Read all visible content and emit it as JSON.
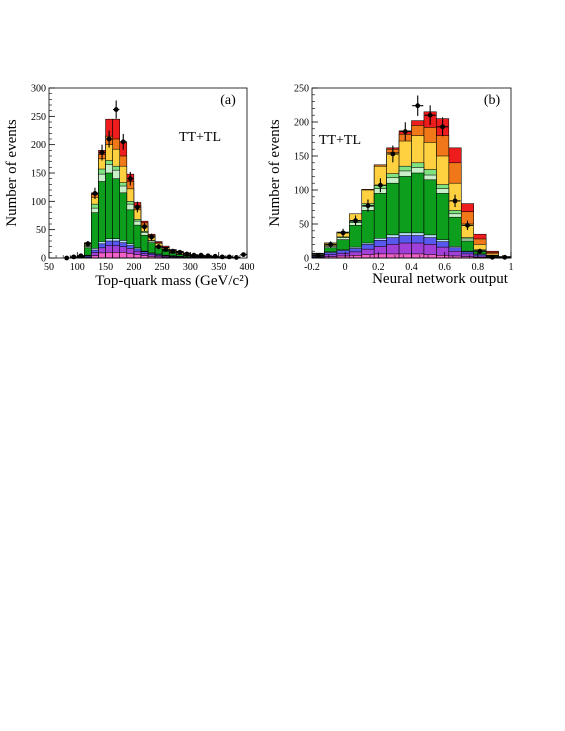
{
  "colors": {
    "signal_top": "#ee1c1c",
    "top_band": "#f07818",
    "wjets": "#ffd040",
    "light_green": "#7ee27e",
    "pale_green": "#c8f0c8",
    "green": "#0e9e1e",
    "light_blue": "#b8e0f8",
    "blue": "#5858ee",
    "purple": "#a040d8",
    "magenta": "#f060c8",
    "data_marker": "#000000"
  },
  "chart_data": [
    {
      "type": "histogram",
      "panel_label": "(a)",
      "annotation": "TT+TL",
      "xlabel": "Top-quark mass (GeV/c²)",
      "ylabel": "Number of events",
      "xlim": [
        50,
        400
      ],
      "ylim": [
        0,
        300
      ],
      "x_ticks": [
        "50",
        "100",
        "150",
        "200",
        "250",
        "300",
        "350",
        "400"
      ],
      "y_ticks": [
        "0",
        "50",
        "100",
        "150",
        "200",
        "250",
        "300"
      ],
      "bin_edges": [
        50,
        62.5,
        75,
        87.5,
        100,
        112.5,
        125,
        137.5,
        150,
        162.5,
        175,
        187.5,
        200,
        212.5,
        225,
        237.5,
        250,
        262.5,
        275,
        287.5,
        300,
        312.5,
        325,
        337.5,
        350,
        362.5,
        375,
        387.5,
        400
      ],
      "stack_order": [
        "magenta",
        "purple",
        "blue",
        "light_blue",
        "green",
        "pale_green",
        "light_green",
        "wjets",
        "top_band",
        "signal_top"
      ],
      "stack_totals": {
        "magenta": [
          0,
          0,
          0,
          0,
          0,
          1,
          4,
          9,
          10,
          10,
          10,
          8,
          6,
          4,
          3,
          2,
          1,
          1,
          1,
          1,
          0,
          0,
          0,
          0,
          0,
          0,
          0,
          0
        ],
        "purple": [
          0,
          0,
          0,
          0,
          0,
          2,
          10,
          18,
          22,
          22,
          20,
          17,
          12,
          8,
          6,
          4,
          3,
          2,
          2,
          1,
          1,
          1,
          1,
          0,
          0,
          0,
          0,
          0
        ],
        "blue": [
          0,
          0,
          0,
          0,
          1,
          4,
          14,
          25,
          30,
          30,
          27,
          22,
          16,
          11,
          8,
          6,
          4,
          3,
          3,
          2,
          2,
          1,
          1,
          1,
          0,
          0,
          0,
          0
        ],
        "light_blue": [
          0,
          0,
          0,
          0,
          1,
          5,
          17,
          29,
          34,
          34,
          31,
          25,
          18,
          12,
          9,
          7,
          5,
          4,
          3,
          2,
          2,
          2,
          1,
          1,
          0,
          0,
          0,
          0
        ],
        "green": [
          0,
          0,
          0,
          0,
          2,
          18,
          80,
          135,
          150,
          140,
          115,
          85,
          58,
          40,
          27,
          18,
          12,
          8,
          6,
          4,
          3,
          2,
          1,
          1,
          1,
          1,
          0,
          0
        ],
        "pale_green": [
          0,
          0,
          0,
          0,
          2,
          20,
          88,
          148,
          165,
          155,
          127,
          95,
          65,
          45,
          30,
          20,
          13,
          9,
          7,
          5,
          3,
          2,
          2,
          1,
          1,
          1,
          1,
          0
        ],
        "light_green": [
          0,
          0,
          0,
          0,
          2,
          22,
          95,
          157,
          172,
          162,
          133,
          100,
          68,
          47,
          31,
          21,
          14,
          10,
          7,
          5,
          4,
          3,
          2,
          1,
          1,
          1,
          1,
          0
        ],
        "wjets": [
          0,
          0,
          0,
          1,
          3,
          25,
          107,
          175,
          200,
          192,
          162,
          122,
          85,
          58,
          38,
          26,
          18,
          13,
          10,
          7,
          5,
          4,
          3,
          2,
          2,
          1,
          1,
          0
        ],
        "top_band": [
          0,
          0,
          0,
          1,
          4,
          26,
          112,
          183,
          215,
          210,
          180,
          135,
          92,
          62,
          40,
          27,
          19,
          14,
          11,
          8,
          6,
          4,
          3,
          2,
          2,
          2,
          1,
          0
        ],
        "signal_top": [
          0,
          0,
          0,
          1,
          4,
          27,
          115,
          190,
          245,
          245,
          205,
          148,
          98,
          65,
          42,
          29,
          21,
          15,
          12,
          9,
          6,
          4,
          3,
          2,
          2,
          2,
          1,
          0
        ]
      },
      "data_points": {
        "x": [
          81.25,
          93.75,
          106.25,
          118.75,
          131.25,
          143.75,
          156.25,
          168.75,
          181.25,
          193.75,
          206.25,
          218.75,
          231.25,
          243.75,
          256.25,
          268.75,
          281.25,
          293.75,
          306.25,
          318.75,
          331.25,
          343.75,
          356.25,
          368.75,
          381.25,
          393.75
        ],
        "y": [
          0,
          2,
          4,
          25,
          114,
          186,
          210,
          262,
          205,
          140,
          90,
          55,
          37,
          20,
          15,
          12,
          10,
          7,
          5,
          5,
          4,
          3,
          2,
          2,
          1,
          6
        ],
        "err": [
          0,
          1.5,
          2,
          5,
          10,
          14,
          15,
          16,
          14,
          12,
          9.5,
          7.5,
          6,
          4.5,
          4,
          3.5,
          3,
          2.6,
          2.2,
          2.2,
          2,
          1.7,
          1.4,
          1.4,
          1,
          2.4
        ]
      }
    },
    {
      "type": "histogram",
      "panel_label": "(b)",
      "annotation": "TT+TL",
      "xlabel": "Neural network output",
      "ylabel": "Number of events",
      "xlim": [
        -0.2,
        1
      ],
      "ylim": [
        0,
        250
      ],
      "x_ticks": [
        "-0.2",
        "0",
        "0.2",
        "0.4",
        "0.6",
        "0.8",
        "1"
      ],
      "y_ticks": [
        "0",
        "50",
        "100",
        "150",
        "200",
        "250"
      ],
      "bin_edges": [
        -0.2,
        -0.125,
        -0.05,
        0.025,
        0.1,
        0.175,
        0.25,
        0.325,
        0.4,
        0.475,
        0.55,
        0.625,
        0.7,
        0.775,
        0.85,
        0.925,
        1.0
      ],
      "stack_order": [
        "magenta",
        "purple",
        "blue",
        "light_blue",
        "green",
        "pale_green",
        "light_green",
        "wjets",
        "top_band",
        "signal_top"
      ],
      "stack_totals": {
        "magenta": [
          1,
          2,
          3,
          4,
          5,
          6,
          6,
          6,
          6,
          5,
          4,
          3,
          2,
          1,
          1,
          0
        ],
        "purple": [
          2,
          5,
          7,
          9,
          13,
          17,
          20,
          22,
          22,
          20,
          16,
          10,
          6,
          3,
          1,
          1
        ],
        "blue": [
          3,
          8,
          11,
          14,
          20,
          26,
          30,
          33,
          33,
          30,
          24,
          15,
          9,
          5,
          2,
          1
        ],
        "light_blue": [
          4,
          9,
          12,
          16,
          22,
          29,
          34,
          37,
          37,
          34,
          27,
          17,
          10,
          6,
          2,
          1
        ],
        "green": [
          5,
          15,
          27,
          48,
          70,
          95,
          110,
          120,
          125,
          115,
          95,
          60,
          25,
          10,
          3,
          1
        ],
        "pale_green": [
          6,
          17,
          30,
          52,
          76,
          102,
          118,
          128,
          133,
          122,
          102,
          65,
          28,
          11,
          3,
          1
        ],
        "light_green": [
          6,
          18,
          31,
          54,
          80,
          107,
          124,
          135,
          140,
          130,
          108,
          70,
          30,
          12,
          4,
          1
        ],
        "wjets": [
          7,
          22,
          38,
          65,
          100,
          135,
          155,
          172,
          180,
          170,
          150,
          110,
          50,
          20,
          6,
          2
        ],
        "top_band": [
          7,
          22,
          38,
          65,
          101,
          137,
          160,
          182,
          195,
          192,
          180,
          140,
          68,
          28,
          8,
          2
        ],
        "signal_top": [
          7,
          22,
          38,
          65,
          101,
          137,
          162,
          187,
          202,
          215,
          205,
          162,
          80,
          35,
          10,
          2
        ]
      },
      "data_points": {
        "x": [
          -0.1625,
          -0.0875,
          -0.0125,
          0.0625,
          0.1375,
          0.2125,
          0.2875,
          0.3625,
          0.4375,
          0.5125,
          0.5875,
          0.6625,
          0.7375,
          0.8125,
          0.8875,
          0.9625
        ],
        "y": [
          4,
          20,
          37,
          55,
          77,
          107,
          153,
          186,
          224,
          210,
          193,
          84,
          48,
          10,
          1,
          1
        ],
        "err": [
          2,
          4.5,
          6,
          7.5,
          9,
          10.3,
          12.4,
          13.6,
          15,
          14.5,
          13.9,
          9.2,
          6.9,
          3.2,
          1,
          1
        ]
      }
    }
  ]
}
